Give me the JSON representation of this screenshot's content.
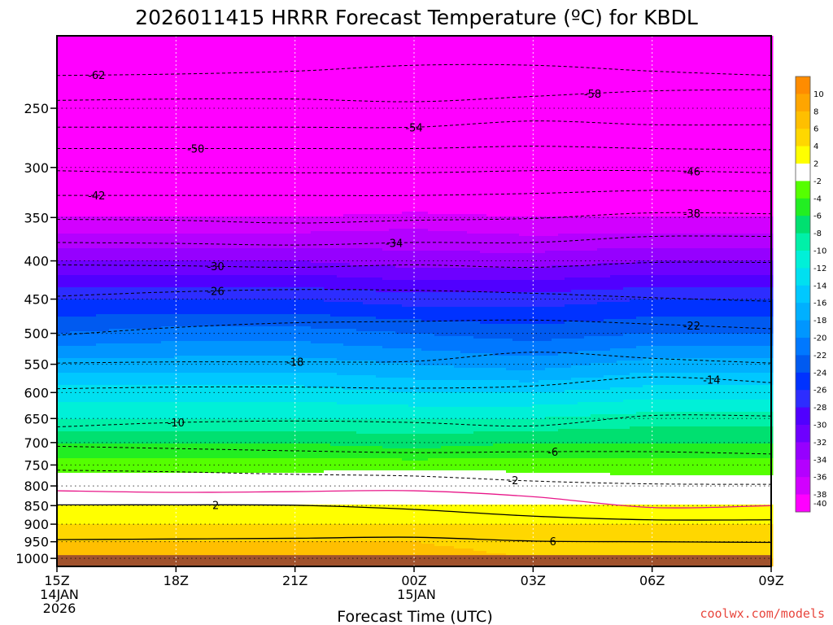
{
  "chart_data": {
    "type": "heatmap",
    "title": "2026011415 HRRR Forecast Temperature (ºC) for KBDL",
    "xlabel": "Forecast Time (UTC)",
    "ylabel": "",
    "credit": "coolwx.com/models",
    "x_ticks": [
      {
        "hour": 0,
        "label": "15Z",
        "sub1": "14JAN",
        "sub2": "2026"
      },
      {
        "hour": 3,
        "label": "18Z",
        "sub1": "",
        "sub2": ""
      },
      {
        "hour": 6,
        "label": "21Z",
        "sub1": "",
        "sub2": ""
      },
      {
        "hour": 9,
        "label": "00Z",
        "sub1": "15JAN",
        "sub2": ""
      },
      {
        "hour": 12,
        "label": "03Z",
        "sub1": "",
        "sub2": ""
      },
      {
        "hour": 15,
        "label": "06Z",
        "sub1": "",
        "sub2": ""
      },
      {
        "hour": 18,
        "label": "09Z",
        "sub1": "",
        "sub2": ""
      }
    ],
    "x_range_hours": [
      0,
      18
    ],
    "pressure_ticks": [
      "250",
      "300",
      "350",
      "400",
      "450",
      "500",
      "550",
      "600",
      "650",
      "700",
      "750",
      "800",
      "850",
      "900",
      "950",
      "1000"
    ],
    "pressure_range_hpa": [
      200,
      1025
    ],
    "ground_hpa": 990,
    "colorbar_labels": [
      "10",
      "8",
      "6",
      "4",
      "2",
      "-2",
      "-4",
      "-6",
      "-8",
      "-10",
      "-12",
      "-14",
      "-16",
      "-18",
      "-20",
      "-22",
      "-24",
      "-26",
      "-28",
      "-30",
      "-32",
      "-34",
      "-36",
      "-38",
      "-40"
    ],
    "colorbar_colors": [
      "#ff8c00",
      "#ffa500",
      "#ffbf00",
      "#ffd700",
      "#ffff00",
      "#ffffff",
      "#55ff00",
      "#22ee22",
      "#00e070",
      "#00f0a8",
      "#00f0d8",
      "#00e0f0",
      "#00c8ff",
      "#00b0ff",
      "#0096ff",
      "#0078ff",
      "#005af0",
      "#0032ff",
      "#2d2dff",
      "#5000ff",
      "#6e00ff",
      "#9600ff",
      "#b400ff",
      "#d200ff",
      "#ff00ff"
    ],
    "temperature_profile": {
      "hours": [
        0,
        3,
        6,
        9,
        12,
        15,
        18
      ],
      "pressure_hpa": [
        200,
        250,
        300,
        350,
        400,
        450,
        500,
        550,
        600,
        650,
        700,
        750,
        800,
        850,
        900,
        950,
        1000
      ],
      "temps_c": [
        [
          -62,
          -58,
          -46,
          -38,
          -32,
          -26,
          -22,
          -17,
          -13,
          -10,
          -6,
          -3,
          0,
          2,
          4,
          6,
          7
        ],
        [
          -62,
          -58,
          -46,
          -38,
          -32,
          -26,
          -21,
          -17,
          -13,
          -10,
          -6,
          -3,
          0,
          2,
          4,
          6,
          7
        ],
        [
          -62,
          -58,
          -46,
          -38,
          -32,
          -26,
          -21,
          -17,
          -13,
          -10,
          -6,
          -3,
          0,
          2,
          4,
          6,
          7
        ],
        [
          -61,
          -58,
          -46,
          -37,
          -33,
          -27,
          -22,
          -18,
          -14,
          -10,
          -7,
          -3,
          1,
          2,
          4,
          6,
          7
        ],
        [
          -62,
          -57,
          -45,
          -38,
          -33,
          -27,
          -23,
          -19,
          -14,
          -10,
          -6,
          -3,
          0,
          2,
          4,
          5,
          6
        ],
        [
          -62,
          -56,
          -45,
          -38,
          -32,
          -26,
          -22,
          -17,
          -13,
          -9,
          -6,
          -3,
          -1,
          2,
          4,
          5,
          6
        ],
        [
          -62,
          -56,
          -45,
          -38,
          -32,
          -26,
          -22,
          -17,
          -13,
          -9,
          -6,
          -3,
          -1,
          2,
          4,
          5,
          6
        ]
      ]
    },
    "contours": [
      {
        "value": -62,
        "label": "-62",
        "pressure_hpa": [
          226,
          225,
          223,
          219,
          219,
          223,
          226
        ]
      },
      {
        "value": -58,
        "label": "-58",
        "pressure_hpa": [
          244,
          243,
          243,
          245,
          241,
          237,
          236
        ]
      },
      {
        "value": -54,
        "label": "-54",
        "pressure_hpa": [
          265,
          265,
          265,
          265,
          260,
          263,
          263
        ]
      },
      {
        "value": -50,
        "label": "-50",
        "pressure_hpa": [
          283,
          283,
          283,
          283,
          281,
          283,
          284
        ]
      },
      {
        "value": -46,
        "label": "-46",
        "pressure_hpa": [
          303,
          305,
          305,
          305,
          303,
          303,
          305
        ]
      },
      {
        "value": -42,
        "label": "-42",
        "pressure_hpa": [
          327,
          327,
          327,
          327,
          325,
          322,
          323
        ]
      },
      {
        "value": -38,
        "label": "-38",
        "pressure_hpa": [
          352,
          353,
          356,
          353,
          351,
          345,
          346
        ]
      },
      {
        "value": -34,
        "label": "-34",
        "pressure_hpa": [
          378,
          379,
          381,
          378,
          378,
          371,
          371
        ]
      },
      {
        "value": -30,
        "label": "-30",
        "pressure_hpa": [
          405,
          406,
          408,
          405,
          408,
          402,
          402
        ]
      },
      {
        "value": -26,
        "label": "-26",
        "pressure_hpa": [
          446,
          440,
          437,
          438,
          442,
          448,
          453
        ]
      },
      {
        "value": -22,
        "label": "-22",
        "pressure_hpa": [
          503,
          491,
          484,
          482,
          480,
          486,
          493
        ]
      },
      {
        "value": -18,
        "label": "-18",
        "pressure_hpa": [
          548,
          546,
          546,
          545,
          530,
          540,
          548
        ]
      },
      {
        "value": -14,
        "label": "-14",
        "pressure_hpa": [
          593,
          590,
          590,
          592,
          588,
          572,
          582
        ]
      },
      {
        "value": -10,
        "label": "-10",
        "pressure_hpa": [
          667,
          658,
          655,
          658,
          665,
          644,
          645
        ]
      },
      {
        "value": -6,
        "label": "-6",
        "pressure_hpa": [
          708,
          713,
          718,
          722,
          720,
          720,
          725
        ]
      },
      {
        "value": -2,
        "label": "-2",
        "pressure_hpa": [
          762,
          766,
          772,
          776,
          788,
          795,
          796
        ]
      },
      {
        "value": 2,
        "label": "2",
        "pressure_hpa": [
          848,
          848,
          849,
          860,
          878,
          888,
          888
        ]
      },
      {
        "value": 6,
        "label": "6",
        "pressure_hpa": [
          944,
          942,
          940,
          937,
          948,
          950,
          952
        ]
      }
    ],
    "freezing_line_hpa": [
      812,
      816,
      814,
      812,
      827,
      855,
      850
    ]
  }
}
